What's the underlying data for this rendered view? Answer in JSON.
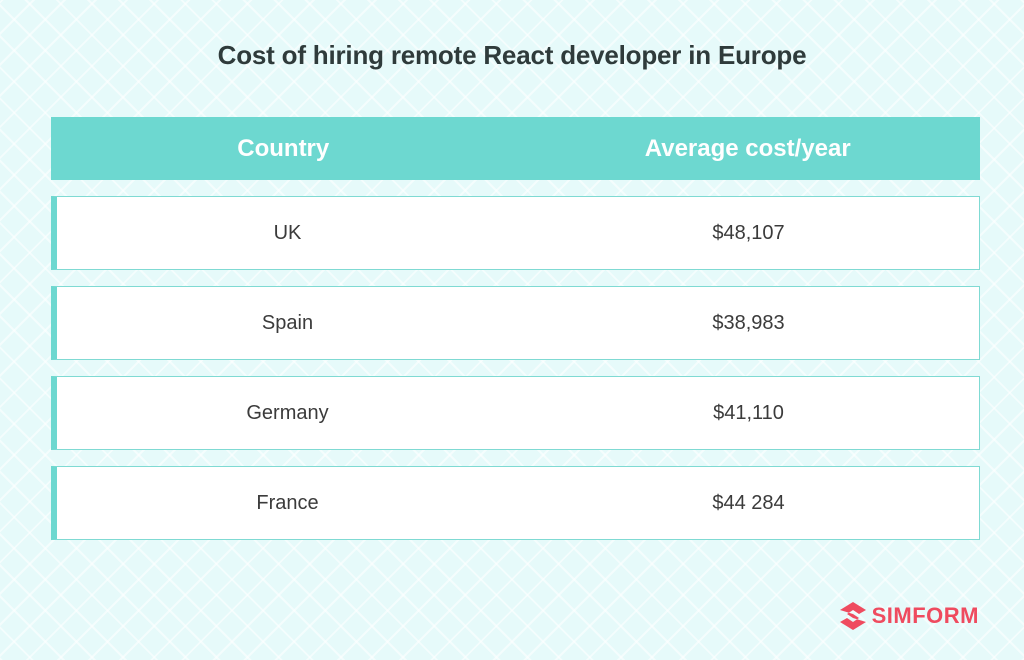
{
  "chart_data": {
    "type": "table",
    "title": "Cost of hiring remote React developer in Europe",
    "columns": [
      "Country",
      "Average cost/year"
    ],
    "rows": [
      {
        "country": "UK",
        "cost": "$48,107"
      },
      {
        "country": "Spain",
        "cost": "$38,983"
      },
      {
        "country": "Germany",
        "cost": "$41,110"
      },
      {
        "country": "France",
        "cost": "$44 284"
      }
    ],
    "header_color": "#6dd8d0"
  },
  "brand": {
    "name": "SIMFORM",
    "icon": "simform-logo-icon",
    "color": "#ef4b5f"
  }
}
